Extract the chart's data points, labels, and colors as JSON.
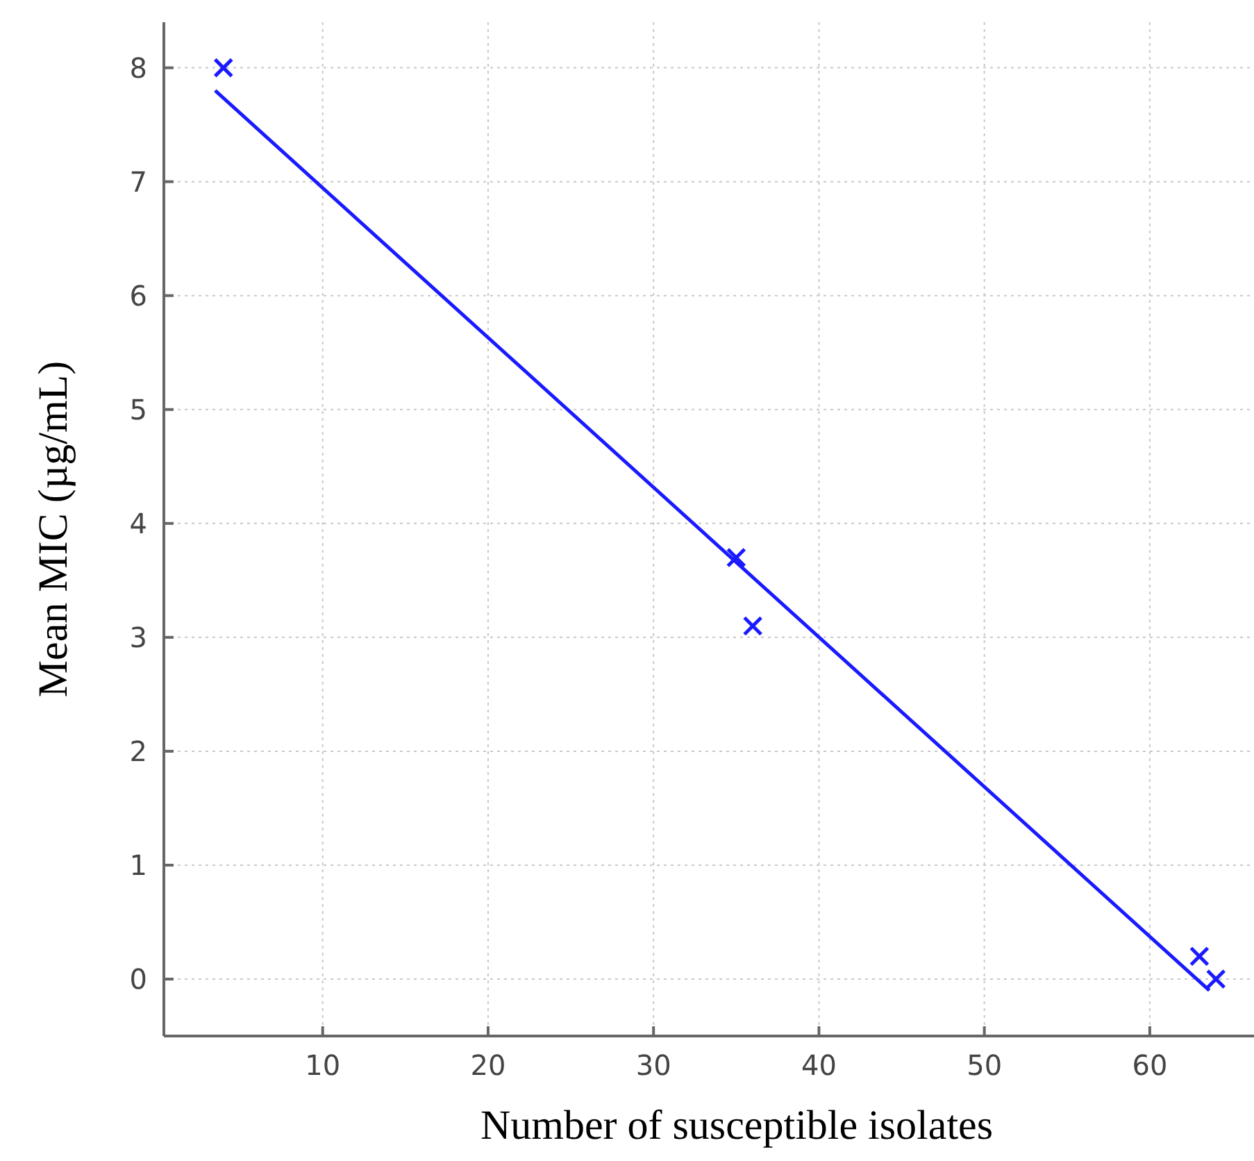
{
  "chart_data": {
    "type": "scatter",
    "xlabel": "Number of susceptible isolates",
    "ylabel": "Mean MIC (µg/mL)",
    "xlim": [
      0.4,
      66.3
    ],
    "ylim": [
      -0.5,
      8.4
    ],
    "xticks": [
      10,
      20,
      30,
      40,
      50,
      60
    ],
    "yticks": [
      0,
      1,
      2,
      3,
      4,
      5,
      6,
      7,
      8
    ],
    "grid": true,
    "marker": "cross",
    "series": [
      {
        "color": "#1a1aff",
        "x": [
          4,
          35,
          36,
          63,
          64
        ],
        "values": [
          8.0,
          3.7,
          3.1,
          0.2,
          0.0
        ]
      },
      {
        "type": "line",
        "color": "#1a1aff",
        "line_style": "solid",
        "marker": "none",
        "x": [
          3.5,
          63.6
        ],
        "values": [
          7.8,
          -0.1
        ]
      }
    ]
  }
}
